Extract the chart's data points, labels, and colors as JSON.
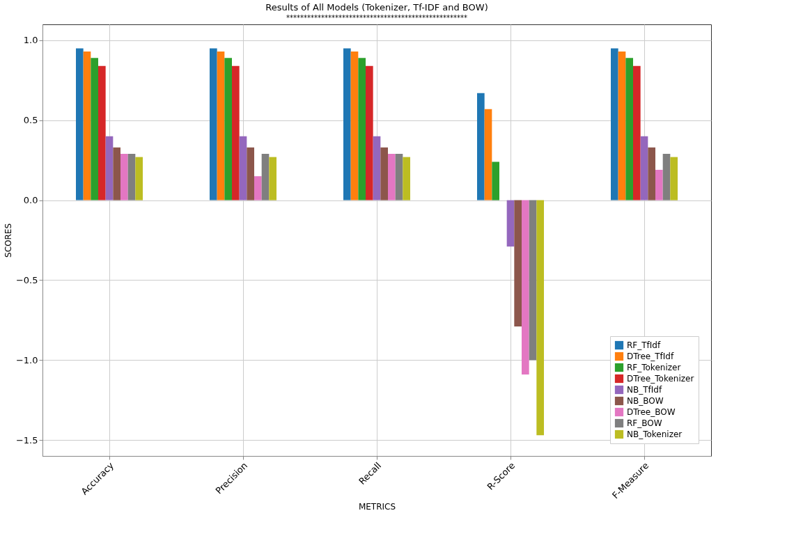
{
  "chart_data": {
    "type": "bar",
    "title": "Results of All Models (Tokenizer, Tf-IDF and BOW)",
    "subtitle": "****************************************************",
    "xlabel": "METRICS",
    "ylabel": "SCORES",
    "categories": [
      "Accuracy",
      "Precision",
      "Recall",
      "R-Score",
      "F-Measure"
    ],
    "series": [
      {
        "name": "RF_TfIdf",
        "color": "#1f77b4",
        "values": [
          0.95,
          0.95,
          0.95,
          0.67,
          0.95
        ]
      },
      {
        "name": "DTree_TfIdf",
        "color": "#ff7f0e",
        "values": [
          0.93,
          0.93,
          0.93,
          0.57,
          0.93
        ]
      },
      {
        "name": "RF_Tokenizer",
        "color": "#2ca02c",
        "values": [
          0.89,
          0.89,
          0.89,
          0.24,
          0.89
        ]
      },
      {
        "name": "DTree_Tokenizer",
        "color": "#d62728",
        "values": [
          0.84,
          0.84,
          0.84,
          0.0,
          0.84
        ]
      },
      {
        "name": "NB_TfIdf",
        "color": "#9467bd",
        "values": [
          0.4,
          0.4,
          0.4,
          -0.29,
          0.4
        ]
      },
      {
        "name": "NB_BOW",
        "color": "#8c564b",
        "values": [
          0.33,
          0.33,
          0.33,
          -0.79,
          0.33
        ]
      },
      {
        "name": "DTree_BOW",
        "color": "#e377c2",
        "values": [
          0.29,
          0.15,
          0.29,
          -1.09,
          0.19
        ]
      },
      {
        "name": "RF_BOW",
        "color": "#7f7f7f",
        "values": [
          0.29,
          0.29,
          0.29,
          -1.0,
          0.29
        ]
      },
      {
        "name": "NB_Tokenizer",
        "color": "#bcbd22",
        "values": [
          0.27,
          0.27,
          0.27,
          -1.47,
          0.27
        ]
      }
    ],
    "ylim": [
      -1.6,
      1.1
    ],
    "yticks": [
      {
        "value": -1.5,
        "label": "−1.5"
      },
      {
        "value": -1.0,
        "label": "−1.0"
      },
      {
        "value": -0.5,
        "label": "−0.5"
      },
      {
        "value": 0.0,
        "label": "0.0"
      },
      {
        "value": 0.5,
        "label": "0.5"
      },
      {
        "value": 1.0,
        "label": "1.0"
      }
    ],
    "grid": true,
    "legend": "bottom right"
  }
}
